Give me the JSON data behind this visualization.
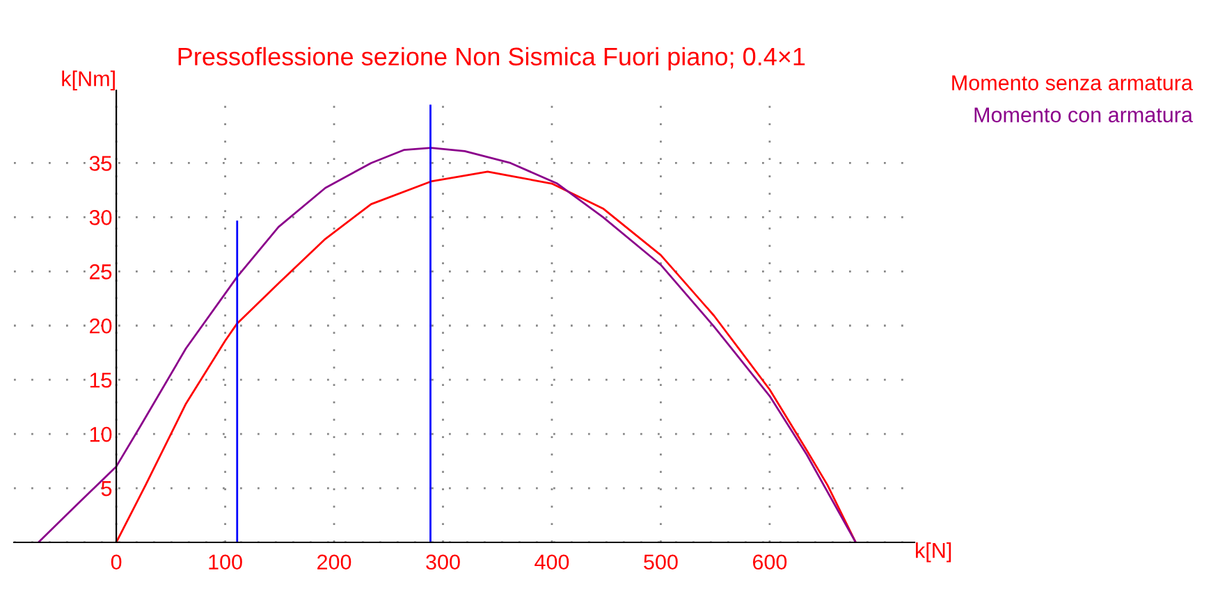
{
  "chart_data": {
    "type": "line",
    "title": "Pressoflessione sezione Non Sismica Fuori piano; 0.4×1",
    "xlabel": "k[N]",
    "ylabel": "k[Nm]",
    "xlim": [
      -94,
      733
    ],
    "ylim": [
      0,
      41.7
    ],
    "xticks": [
      0,
      100,
      200,
      300,
      400,
      500,
      600
    ],
    "yticks": [
      {
        "value": 0,
        "label": null
      },
      5,
      10,
      15,
      20,
      25,
      30,
      35
    ],
    "grid": true,
    "legend": "top right",
    "series": [
      {
        "name": "Momento senza armatura",
        "color": "#ff0000",
        "x": [
          0,
          27,
          64,
          100,
          111,
          149,
          192,
          234,
          289,
          341,
          400,
          447,
          500,
          549,
          600,
          634,
          653,
          679
        ],
        "values": [
          0,
          5.3,
          12.8,
          18.6,
          20.2,
          23.9,
          28.0,
          31.2,
          33.3,
          34.2,
          33.1,
          30.8,
          26.5,
          20.9,
          14.1,
          8.5,
          5.3,
          0
        ]
      },
      {
        "name": "Momento con armatura",
        "color": "#8b008b",
        "x": [
          -71.5,
          -36,
          0,
          22,
          64,
          111,
          149,
          192,
          234,
          264,
          289,
          320,
          362,
          405,
          447,
          500,
          549,
          600,
          634,
          679
        ],
        "values": [
          0,
          3.5,
          7.0,
          10.7,
          17.9,
          24.5,
          29.1,
          32.7,
          35.0,
          36.2,
          36.4,
          36.1,
          35.0,
          33.1,
          30.0,
          25.6,
          19.9,
          13.5,
          8.1,
          0
        ]
      },
      {
        "color": "#0000ff",
        "x": [
          111,
          111
        ],
        "values": [
          0,
          29.6
        ]
      },
      {
        "color": "#0000ff",
        "x": [
          288.5,
          288.5
        ],
        "values": [
          0,
          40.3
        ]
      }
    ]
  }
}
